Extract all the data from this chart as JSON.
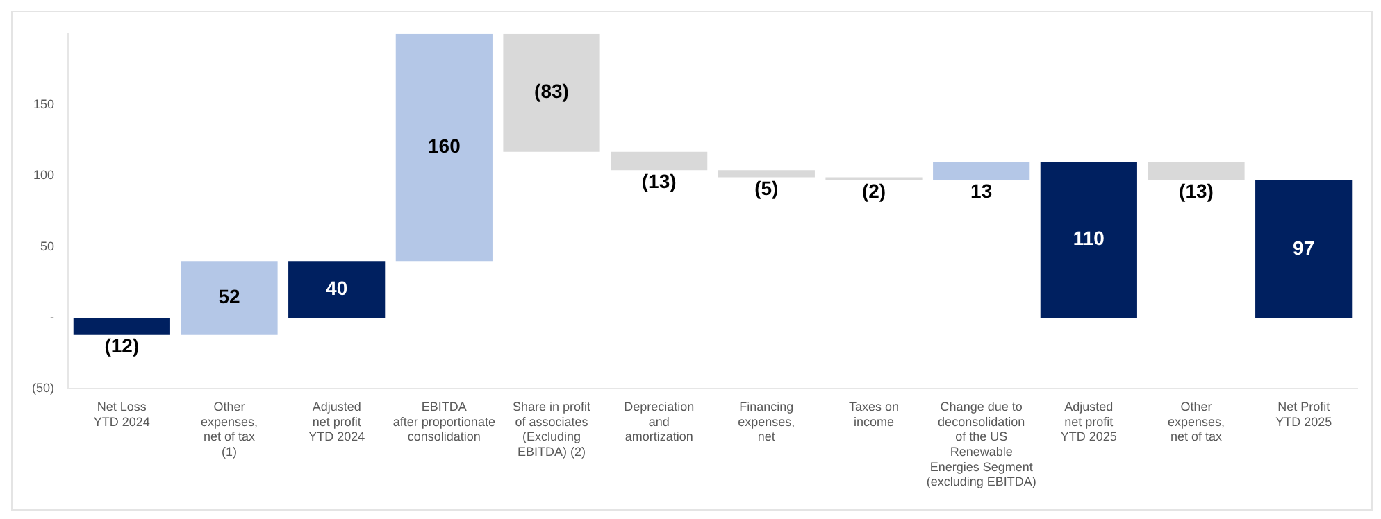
{
  "chart_data": {
    "type": "bar",
    "categories": [
      "Net Loss\nYTD 2024",
      "Other\nexpenses,\nnet of tax\n(1)",
      "Adjusted\nnet profit\nYTD 2024",
      "EBITDA\nafter proportionate\nconsolidation",
      "Share in profit\nof associates\n(Excluding\nEBITDA) (2)",
      "Depreciation\nand\namortization",
      "Financing\nexpenses,\nnet",
      "Taxes on\nincome",
      "Change due to\ndeconsolidation\nof the US\nRenewable\nEnergies Segment\n(excluding EBITDA)",
      "Adjusted\nnet profit\nYTD 2025",
      "Other\nexpenses,\nnet of tax",
      "Net Profit\nYTD 2025"
    ],
    "values": [
      -12,
      52,
      40,
      160,
      -83,
      -13,
      -5,
      -2,
      13,
      110,
      -13,
      97
    ],
    "base": [
      0,
      -12,
      0,
      40,
      200,
      117,
      104,
      99,
      97,
      0,
      110,
      0
    ],
    "colors": [
      "#002060",
      "#b4c7e7",
      "#002060",
      "#b4c7e7",
      "#d9d9d9",
      "#d9d9d9",
      "#d9d9d9",
      "#d9d9d9",
      "#b4c7e7",
      "#002060",
      "#d9d9d9",
      "#002060"
    ],
    "value_labels": [
      "(12)",
      "52",
      "40",
      "160",
      "(83)",
      "(13)",
      "(5)",
      "(2)",
      "13",
      "110",
      "(13)",
      "97"
    ],
    "ylim": [
      -50,
      200
    ],
    "yticks": [
      {
        "value": -50,
        "label": "(50)"
      },
      {
        "value": 0,
        "label": "-"
      },
      50,
      100,
      150
    ],
    "grid": false,
    "legend": false
  }
}
